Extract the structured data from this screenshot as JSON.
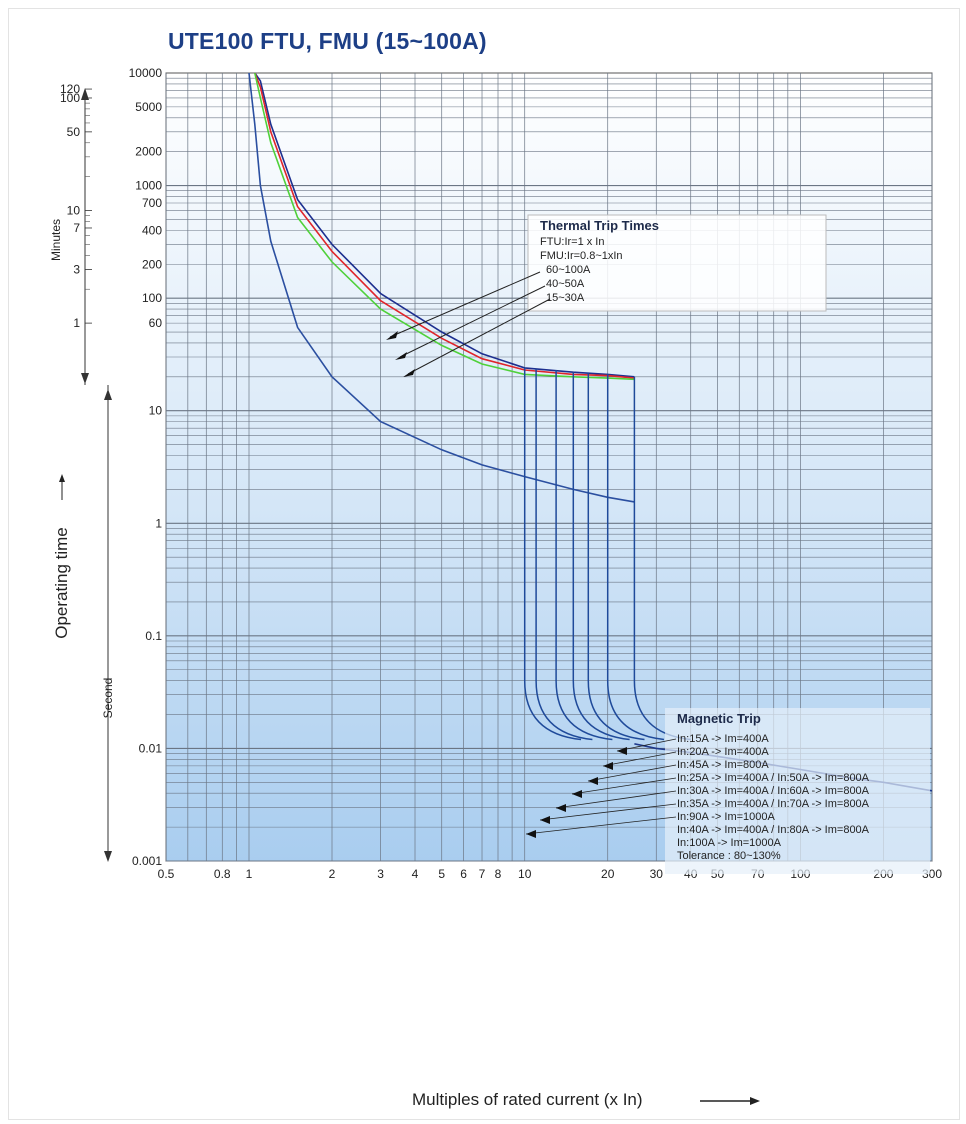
{
  "title": "UTE100 FTU, FMU (15~100A)",
  "chart_data": {
    "type": "line",
    "title": "UTE100 FTU, FMU (15~100A)",
    "xlabel": "Multiples of rated current (x In)",
    "ylabel": "Operating time",
    "ylabel_seconds": "Second",
    "ylabel_minutes": "Minutes",
    "x_scale": "log",
    "y_scale": "log",
    "xlim": [
      0.5,
      300
    ],
    "ylim": [
      0.001,
      10000
    ],
    "grid": true,
    "x_ticks": [
      "0.5",
      "0.8",
      "1",
      "2",
      "3",
      "4",
      "5",
      "6",
      "7",
      "8",
      "10",
      "20",
      "30",
      "40",
      "50",
      "70",
      "100",
      "200",
      "300"
    ],
    "x_tick_values": [
      0.5,
      0.8,
      1,
      2,
      3,
      4,
      5,
      6,
      7,
      8,
      10,
      20,
      30,
      40,
      50,
      70,
      100,
      200,
      300
    ],
    "y_ticks": [
      "10000",
      "5000",
      "2000",
      "1000",
      "700",
      "400",
      "200",
      "100",
      "60",
      "10",
      "1",
      "0.1",
      "0.01",
      "0.001"
    ],
    "y_tick_values": [
      10000,
      5000,
      2000,
      1000,
      700,
      400,
      200,
      100,
      60,
      10,
      1,
      0.1,
      0.01,
      0.001
    ],
    "minutes_ticks": [
      "120",
      "100",
      "50",
      "10",
      "7",
      "3",
      "1"
    ],
    "minutes_tick_values": [
      120,
      100,
      50,
      10,
      7,
      3,
      1
    ],
    "thermal_legend": {
      "heading": "Thermal Trip Times",
      "line1": "FTU:Ir=1 x In",
      "line2": "FMU:Ir=0.8~1xIn",
      "entries": [
        {
          "label": "60~100A",
          "color": "#1f5fbf"
        },
        {
          "label": "40~50A",
          "color": "#e0252b"
        },
        {
          "label": "15~30A",
          "color": "#4fd13a"
        }
      ]
    },
    "magnetic_legend": {
      "heading": "Magnetic Trip",
      "lines": [
        "In:15A -> Im=400A",
        "In:20A -> Im=400A",
        "In:45A -> Im=800A",
        "In:25A -> Im=400A / In:50A -> Im=800A",
        "In:30A -> Im=400A / In:60A -> Im=800A",
        "In:35A -> Im=400A / In:70A -> Im=800A",
        "In:90A -> Im=1000A",
        "In:40A -> Im=400A / In:80A -> Im=800A",
        "In:100A -> Im=1000A",
        "Tolerance : 80~130%"
      ]
    },
    "series": [
      {
        "name": "60~100A",
        "color": "#1d2f8f",
        "x": [
          1.05,
          1.1,
          1.2,
          1.5,
          2,
          3,
          5,
          7,
          10,
          15,
          20,
          25
        ],
        "y": [
          10000,
          8500,
          3500,
          750,
          300,
          110,
          50,
          32,
          24,
          22,
          21,
          20
        ]
      },
      {
        "name": "40~50A",
        "color": "#e0252b",
        "x": [
          1.05,
          1.1,
          1.2,
          1.5,
          2,
          3,
          5,
          7,
          10,
          15,
          20,
          25
        ],
        "y": [
          10000,
          7500,
          3000,
          650,
          260,
          95,
          44,
          29,
          23,
          21,
          20.5,
          19.5
        ]
      },
      {
        "name": "15~30A",
        "color": "#4fd13a",
        "x": [
          1.05,
          1.1,
          1.2,
          1.5,
          2,
          3,
          5,
          7,
          10,
          15,
          20,
          25
        ],
        "y": [
          10000,
          6000,
          2400,
          520,
          210,
          80,
          38,
          26,
          21,
          20,
          19.5,
          19
        ]
      },
      {
        "name": "",
        "color": "#2b4fa0",
        "x": [
          1.0,
          1.05,
          1.1,
          1.2,
          1.5,
          2,
          3,
          5,
          7,
          10,
          15,
          20,
          25
        ],
        "y": [
          10000,
          3500,
          1000,
          320,
          55,
          20,
          8.0,
          4.5,
          3.3,
          2.6,
          2.0,
          1.7,
          1.55
        ]
      },
      {
        "name": "",
        "color": "#1f3a8c",
        "x": [
          25,
          30,
          40,
          50,
          70,
          100,
          150,
          200,
          300
        ],
        "y": [
          0.011,
          0.01,
          0.0092,
          0.0085,
          0.0075,
          0.0065,
          0.0055,
          0.005,
          0.0042
        ]
      }
    ],
    "magnetic_drops_x": [
      10,
      11,
      13,
      15,
      17,
      20,
      25
    ],
    "magnetic_drop_top_y": [
      24,
      23.5,
      23,
      22,
      21.5,
      21,
      20
    ]
  }
}
